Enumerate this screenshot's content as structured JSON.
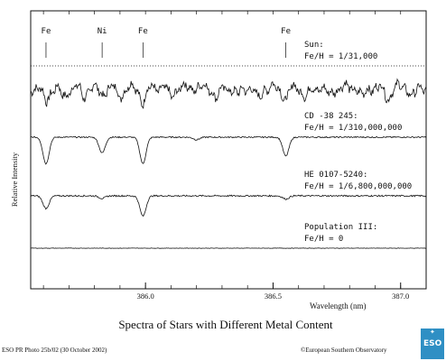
{
  "colors": {
    "line": "#111111",
    "logo": "#2f8fc4"
  },
  "chart_data": {
    "type": "line",
    "title": "Spectra of Stars with Different Metal Content",
    "xlabel": "Wavelength (nm)",
    "ylabel": "Relative Intensity",
    "xlim": [
      385.55,
      387.1
    ],
    "x_ticks": [
      {
        "value": 386.0,
        "label": "386.0"
      },
      {
        "value": 386.5,
        "label": "386.5"
      },
      {
        "value": 387.0,
        "label": "387.0"
      }
    ],
    "line_markers": [
      {
        "label": "Fe",
        "wavelength": 385.61
      },
      {
        "label": "Ni",
        "wavelength": 385.83
      },
      {
        "label": "Fe",
        "wavelength": 385.99
      },
      {
        "label": "Fe",
        "wavelength": 386.55
      }
    ],
    "series": [
      {
        "name": "Sun",
        "annotation": [
          "Sun:",
          "Fe/H  =  1/31,000"
        ],
        "continuum": 1.0,
        "noise": 0.07,
        "waves": 0.12,
        "lines": [
          [
            385.61,
            0.25
          ],
          [
            385.83,
            0.12
          ],
          [
            385.99,
            0.25
          ],
          [
            386.55,
            0.2
          ],
          [
            385.68,
            0.18
          ],
          [
            385.76,
            0.15
          ],
          [
            385.9,
            0.14
          ],
          [
            386.1,
            0.16
          ],
          [
            386.28,
            0.18
          ],
          [
            386.36,
            0.14
          ],
          [
            386.44,
            0.2
          ],
          [
            386.63,
            0.17
          ],
          [
            386.72,
            0.14
          ],
          [
            386.85,
            0.16
          ],
          [
            386.95,
            0.18
          ],
          [
            387.05,
            0.15
          ]
        ],
        "dashed_segments": [
          [
            386.12,
            386.28
          ],
          [
            386.36,
            386.5
          ],
          [
            386.6,
            386.72
          ]
        ]
      },
      {
        "name": "CD -38 245",
        "annotation": [
          "CD  -38  245:",
          "Fe/H  =  1/310,000,000"
        ],
        "continuum": 1.0,
        "noise": 0.01,
        "waves": 0,
        "lines": [
          [
            385.61,
            0.42
          ],
          [
            385.83,
            0.25
          ],
          [
            385.99,
            0.42
          ],
          [
            386.55,
            0.3
          ],
          [
            386.2,
            0.04
          ]
        ]
      },
      {
        "name": "HE 0107-5240",
        "annotation": [
          "HE  0107-5240:",
          "Fe/H  =  1/6,800,000,000"
        ],
        "continuum": 1.0,
        "noise": 0.012,
        "waves": 0,
        "lines": [
          [
            385.61,
            0.2
          ],
          [
            385.99,
            0.32
          ],
          [
            385.83,
            0.04
          ],
          [
            386.55,
            0.05
          ]
        ]
      },
      {
        "name": "Population III",
        "annotation": [
          "Population  III:",
          "Fe/H  =  0"
        ],
        "continuum": 1.0,
        "noise": 0.004,
        "waves": 0,
        "lines": []
      }
    ],
    "grid": false,
    "legend": "annotations-right"
  },
  "footer": {
    "photo_credit": "ESO PR Photo 25b/02 (30 October 2002)",
    "copyright": "©European Southern Observatory",
    "logo_text": "ESO"
  }
}
